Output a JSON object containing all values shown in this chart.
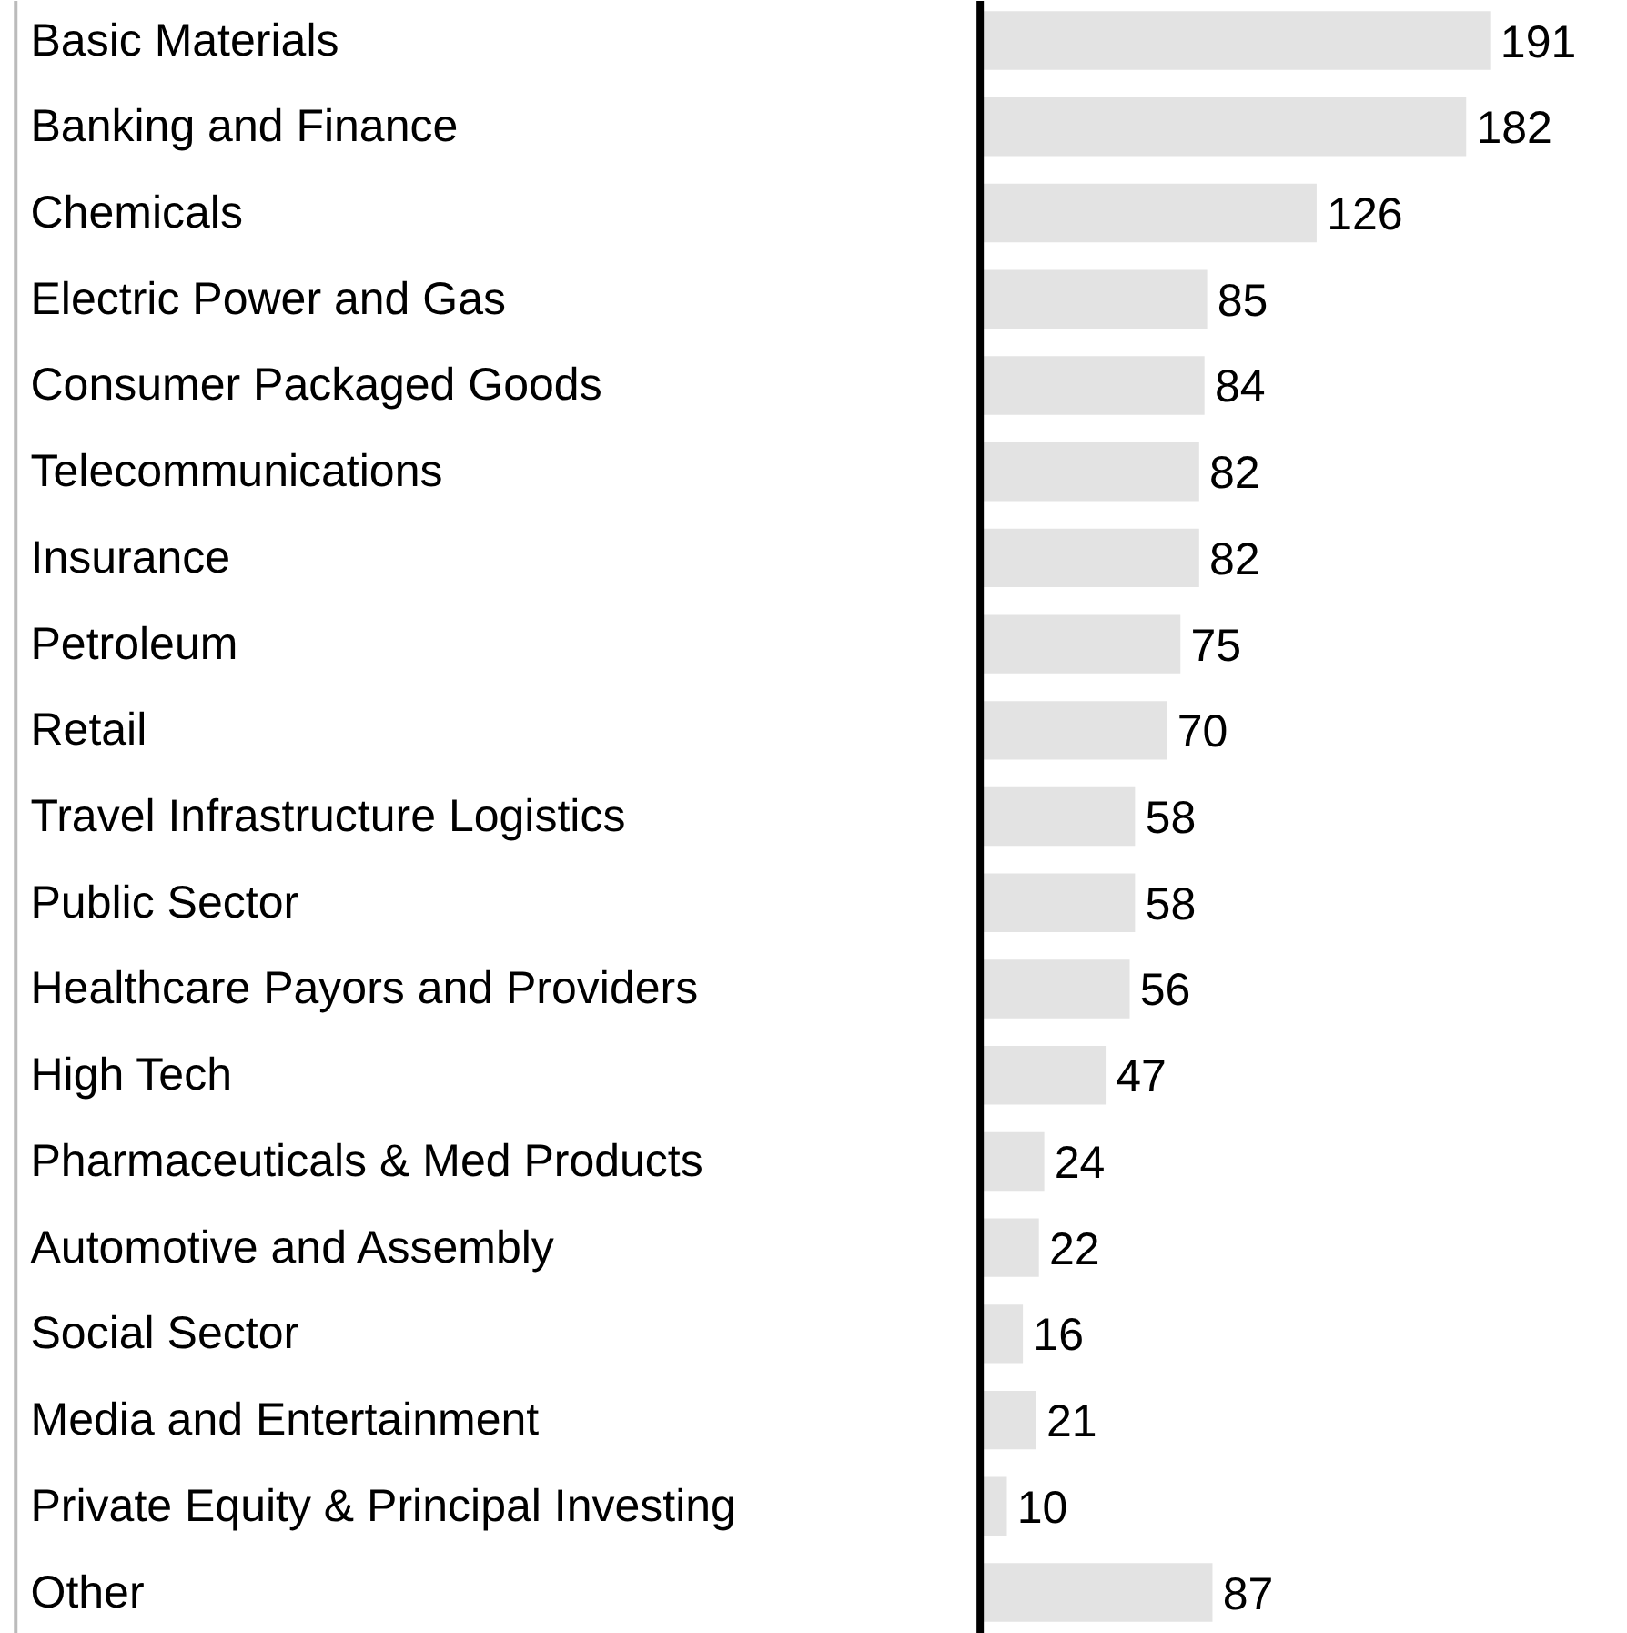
{
  "chart_data": {
    "type": "bar",
    "orientation": "horizontal",
    "data_labels": true,
    "color": "#e3e3e3",
    "categories": [
      "Basic Materials",
      "Banking and Finance",
      "Chemicals",
      "Electric Power and Gas",
      "Consumer Packaged Goods",
      "Telecommunications",
      "Insurance",
      "Petroleum",
      "Retail",
      "Travel Infrastructure Logistics",
      "Public Sector",
      "Healthcare Payors and Providers",
      "High Tech",
      "Pharmaceuticals & Med Products",
      "Automotive and Assembly",
      "Social Sector",
      "Media and Entertainment",
      "Private Equity & Principal Investing",
      "Other"
    ],
    "values": [
      191,
      182,
      126,
      85,
      84,
      82,
      82,
      75,
      70,
      58,
      58,
      56,
      47,
      24,
      22,
      16,
      21,
      10,
      87
    ]
  }
}
